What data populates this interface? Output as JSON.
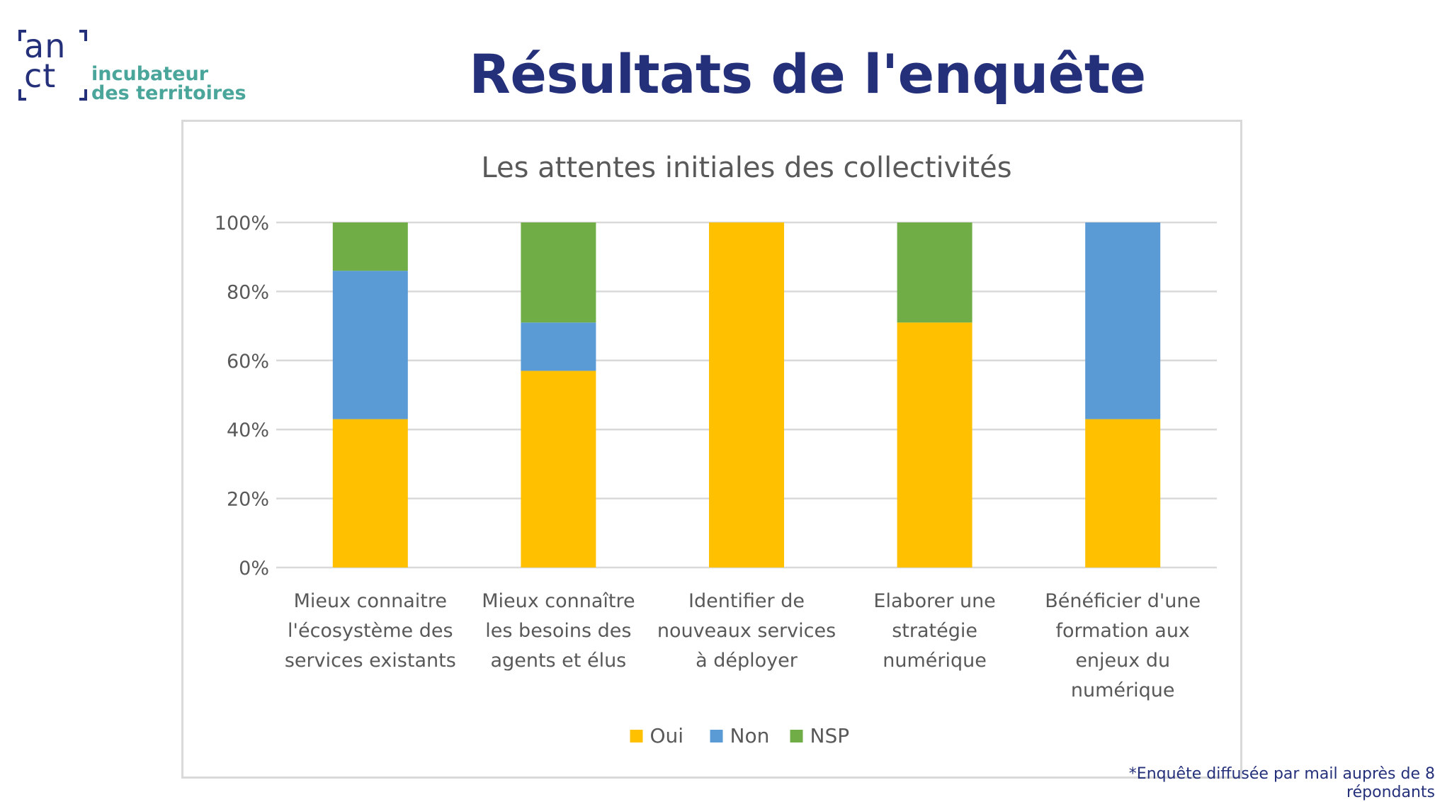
{
  "header": {
    "logo": {
      "mark_line1": "an",
      "mark_line2": "ct",
      "text_line1": "incubateur",
      "text_line2": "des territoires"
    },
    "title": "Résultats de l'enquête"
  },
  "footnote": {
    "line1": "*Enquête diffusée par mail auprès de 8",
    "line2": "répondants"
  },
  "colors": {
    "title": "#25307a",
    "logo_text": "#4aa59a",
    "oui": "#ffc000",
    "non": "#5b9bd5",
    "nsp": "#70ad47"
  },
  "chart_data": {
    "type": "bar",
    "stacked": true,
    "title": "Les attentes initiales des collectivités",
    "categories": [
      [
        "Mieux connaitre",
        "l'écosystème des",
        "services existants"
      ],
      [
        "Mieux connaître",
        "les besoins des",
        "agents et élus"
      ],
      [
        "Identifier de",
        "nouveaux services",
        "à déployer"
      ],
      [
        "Elaborer une",
        "stratégie",
        "numérique"
      ],
      [
        "Bénéficier d'une",
        "formation aux",
        "enjeux du",
        "numérique"
      ]
    ],
    "series": [
      {
        "name": "Oui",
        "color": "#ffc000",
        "values": [
          43,
          57,
          100,
          71,
          43
        ]
      },
      {
        "name": "Non",
        "color": "#5b9bd5",
        "values": [
          43,
          14,
          0,
          0,
          57
        ]
      },
      {
        "name": "NSP",
        "color": "#70ad47",
        "values": [
          14,
          29,
          0,
          29,
          0
        ]
      }
    ],
    "yticks": [
      "0%",
      "20%",
      "40%",
      "60%",
      "80%",
      "100%"
    ],
    "ylim": [
      0,
      100
    ],
    "grid": true,
    "legend_position": "bottom"
  }
}
